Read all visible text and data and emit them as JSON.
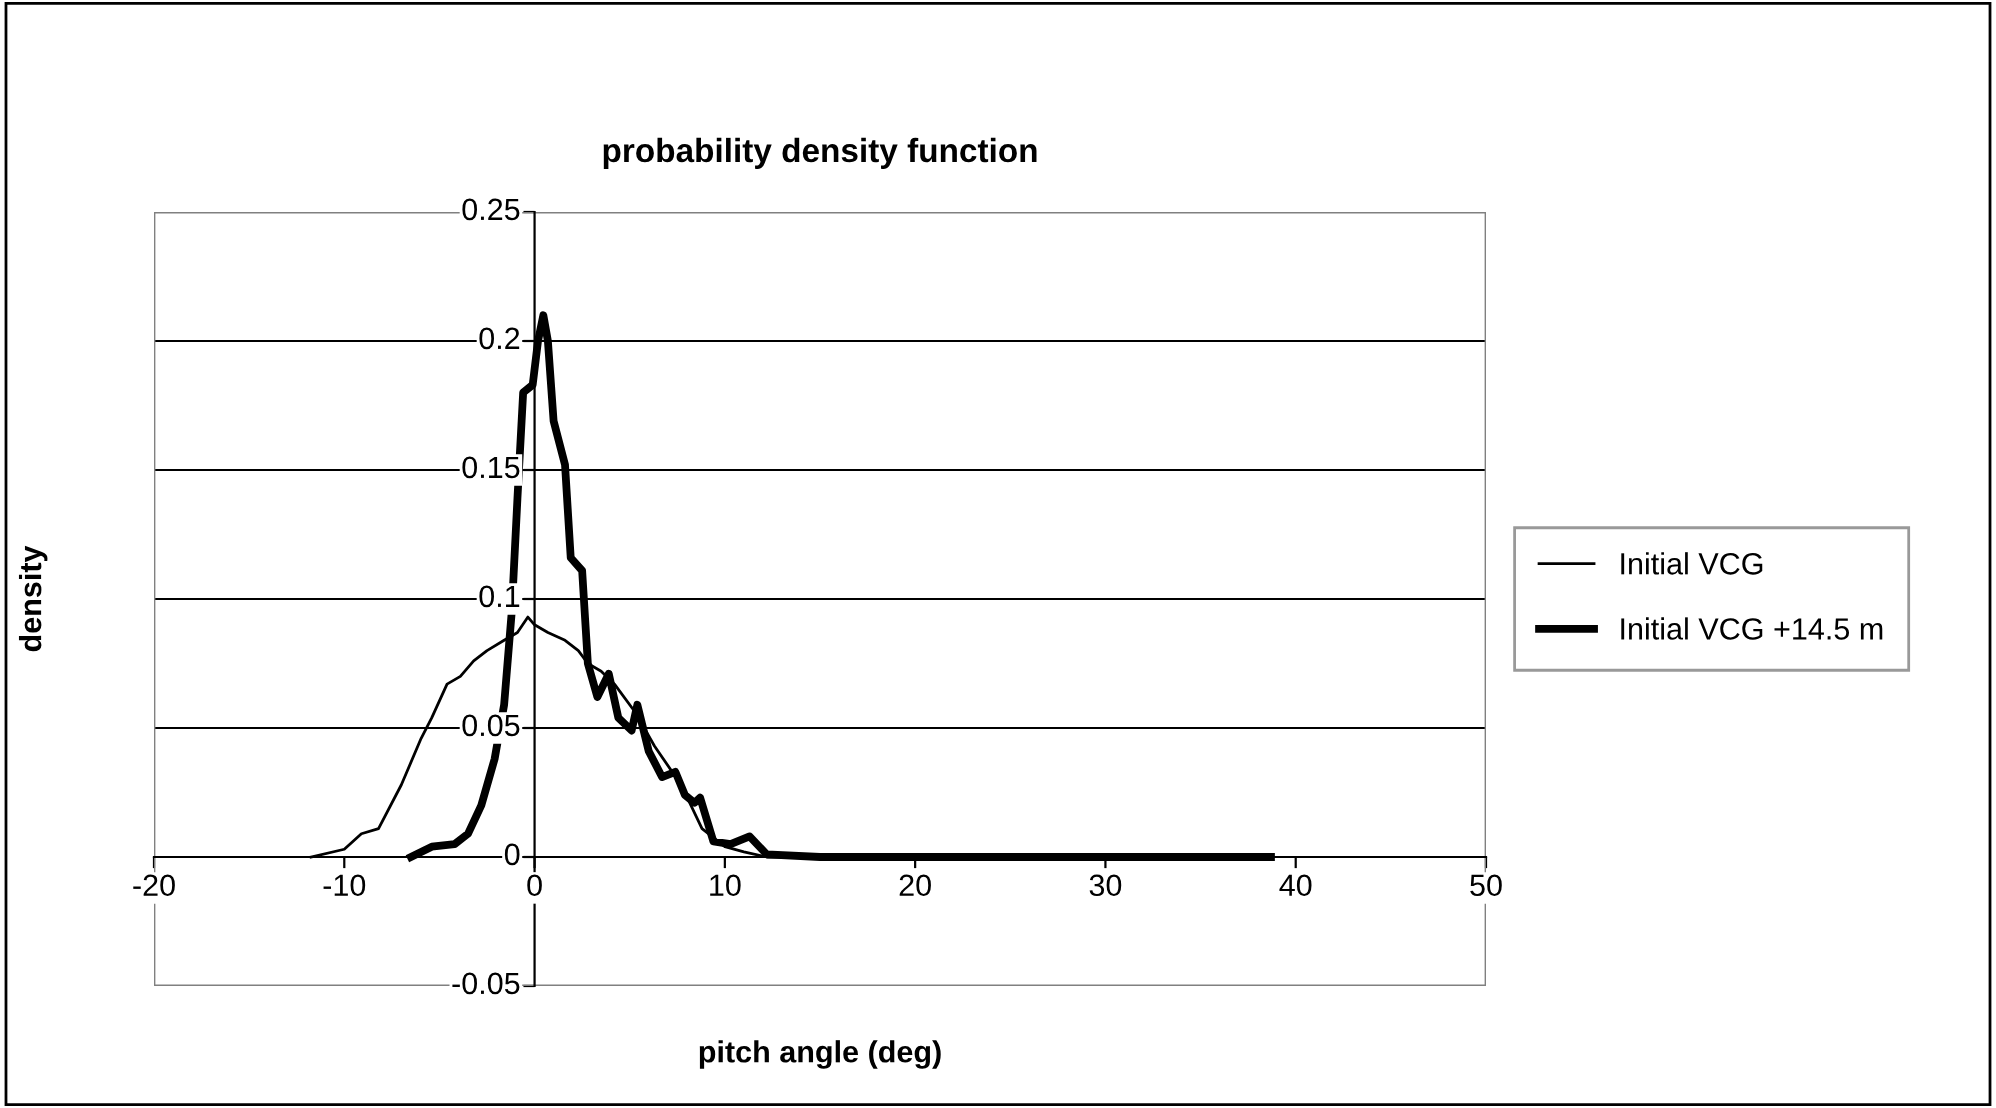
{
  "chart_data": {
    "type": "line",
    "title": "probability density function",
    "xlabel": "pitch angle (deg)",
    "ylabel": "density",
    "xlim": [
      -20,
      50
    ],
    "xticks": [
      -20,
      -10,
      0,
      10,
      20,
      30,
      40,
      50
    ],
    "ylim": [
      -0.05,
      0.25
    ],
    "yticks": [
      -0.05,
      0,
      0.05,
      0.1,
      0.15,
      0.2,
      0.25
    ],
    "grid": "y",
    "legend": "right",
    "marker": "none",
    "line_style": "solid",
    "series": [
      {
        "name": "Initial VCG",
        "color": "#000000",
        "x": [
          -11.75,
          -10,
          -9.1,
          -8.2,
          -7.0,
          -5.96,
          -5.4,
          -4.6,
          -3.9,
          -3.2,
          -2.5,
          -1.6,
          -0.9,
          -0.35,
          0,
          0.7,
          1.6,
          2.3,
          2.8,
          3.5,
          4.2,
          5.3,
          6.3,
          7.7,
          8.8,
          10,
          11,
          12.2,
          15,
          20
        ],
        "values": [
          0,
          0.003,
          0.009,
          0.011,
          0.028,
          0.046,
          0.054,
          0.067,
          0.07,
          0.076,
          0.08,
          0.084,
          0.087,
          0.093,
          0.09,
          0.087,
          0.084,
          0.08,
          0.075,
          0.072,
          0.067,
          0.056,
          0.043,
          0.028,
          0.011,
          0.004,
          0.002,
          0,
          0,
          0
        ]
      },
      {
        "name": "Initial VCG +14.5 m",
        "color": "#000000",
        "x": [
          -6.5,
          -5.4,
          -4.2,
          -3.5,
          -2.8,
          -2.1,
          -1.6,
          -1.2,
          -0.9,
          -0.6,
          -0.1,
          0.18,
          0.46,
          0.7,
          1.0,
          1.6,
          1.9,
          2.5,
          2.8,
          3.3,
          3.9,
          4.4,
          5.1,
          5.4,
          6.0,
          6.7,
          7.4,
          7.9,
          8.4,
          8.7,
          9.4,
          10.3,
          11.3,
          12.2,
          15,
          20,
          25,
          30,
          35,
          38.7
        ],
        "values": [
          0,
          0.004,
          0.005,
          0.009,
          0.02,
          0.038,
          0.059,
          0.095,
          0.139,
          0.18,
          0.183,
          0.2,
          0.21,
          0.2,
          0.169,
          0.152,
          0.116,
          0.111,
          0.075,
          0.062,
          0.071,
          0.054,
          0.049,
          0.059,
          0.041,
          0.031,
          0.033,
          0.024,
          0.021,
          0.023,
          0.006,
          0.005,
          0.008,
          0.001,
          0,
          0,
          0,
          0,
          0,
          0
        ]
      }
    ]
  }
}
